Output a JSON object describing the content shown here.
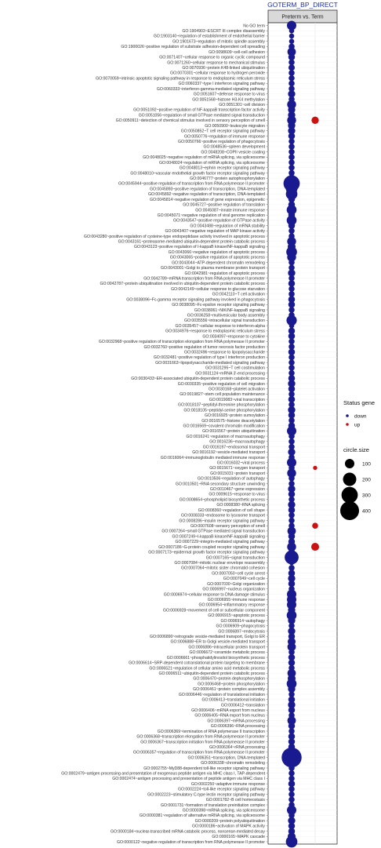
{
  "chart_data": {
    "type": "scatter",
    "title": "GOTERM_BP_DIRECT",
    "facet_label": "Preterm vs. Term",
    "x_positions": [
      "down",
      "up"
    ],
    "legend_status": {
      "title": "Status gene",
      "entries": [
        {
          "name": "down",
          "color": "#1a1a90"
        },
        {
          "name": "up",
          "color": "#cc1111"
        }
      ]
    },
    "legend_size": {
      "title": "circle.size",
      "values": [
        100,
        200,
        300,
        400
      ]
    },
    "rows": [
      {
        "term": "No GO term",
        "down": 100,
        "up": null
      },
      {
        "term": "GO:1904903~ESCRT III complex disassembly",
        "down": 30,
        "up": null
      },
      {
        "term": "GO:1903140~regulation of establishment of endothelial barrier",
        "down": 30,
        "up": null
      },
      {
        "term": "GO:1901673~regulation of mitotic spindle assembly",
        "down": 30,
        "up": null
      },
      {
        "term": "GO:1900026~positive regulation of substrate adhesion-dependent cell spreading",
        "down": 40,
        "up": null
      },
      {
        "term": "GO:0098609~cell-cell adhesion",
        "down": 80,
        "up": null
      },
      {
        "term": "GO:0071407~cellular response to organic cyclic compound",
        "down": 50,
        "up": null
      },
      {
        "term": "GO:0071260~cellular response to mechanical stimulus",
        "down": 40,
        "up": null
      },
      {
        "term": "GO:0070936~protein K48-linked ubiquitination",
        "down": 45,
        "up": null
      },
      {
        "term": "GO:0070301~cellular response to hydrogen peroxide",
        "down": 40,
        "up": null
      },
      {
        "term": "GO:0070059~intrinsic apoptotic signaling pathway in response to endoplasmic reticulum stress",
        "down": 40,
        "up": null
      },
      {
        "term": "GO:0060337~type I interferon signaling pathway",
        "down": 40,
        "up": null
      },
      {
        "term": "GO:0060333~interferon-gamma-mediated signaling pathway",
        "down": 40,
        "up": null
      },
      {
        "term": "GO:0051607~defense response to virus",
        "down": 60,
        "up": null
      },
      {
        "term": "GO:0051568~histone H3-K4 methylation",
        "down": 40,
        "up": null
      },
      {
        "term": "GO:0051301~cell division",
        "down": 90,
        "up": null
      },
      {
        "term": "GO:0051092~positive regulation of NF-kappaB transcription factor activity",
        "down": 60,
        "up": null
      },
      {
        "term": "GO:0051056~regulation of small GTPase mediated signal transduction",
        "down": 60,
        "up": null
      },
      {
        "term": "GO:0050911~detection of chemical stimulus involved in sensory perception of smell",
        "down": 90,
        "up": 60
      },
      {
        "term": "GO:0050900~leukocyte migration",
        "down": 60,
        "up": null
      },
      {
        "term": "GO:0050852~T cell receptor signaling pathway",
        "down": 60,
        "up": null
      },
      {
        "term": "GO:0050776~regulation of immune response",
        "down": 50,
        "up": null
      },
      {
        "term": "GO:0050766~positive regulation of phagocytosis",
        "down": 40,
        "up": null
      },
      {
        "term": "GO:0048536~spleen development",
        "down": 40,
        "up": null
      },
      {
        "term": "GO:0048208~COPII vesicle coating",
        "down": 40,
        "up": null
      },
      {
        "term": "GO:0048025~negative regulation of mRNA splicing, via spliceosome",
        "down": 40,
        "up": null
      },
      {
        "term": "GO:0048024~regulation of mRNA splicing, via spliceosome",
        "down": 40,
        "up": null
      },
      {
        "term": "GO:0048013~ephrin receptor signaling pathway",
        "down": 40,
        "up": null
      },
      {
        "term": "GO:0048010~vascular endothelial growth factor receptor signaling pathway",
        "down": 40,
        "up": null
      },
      {
        "term": "GO:0046777~protein autophosphorylation",
        "down": 60,
        "up": null
      },
      {
        "term": "GO:0045944~positive regulation of transcription from RNA polymerase II promoter",
        "down": 300,
        "up": null
      },
      {
        "term": "GO:0045893~positive regulation of transcription, DNA-templated",
        "down": 150,
        "up": null
      },
      {
        "term": "GO:0045892~negative regulation of transcription, DNA-templated",
        "down": 150,
        "up": null
      },
      {
        "term": "GO:0045814~negative regulation of gene expression, epigenetic",
        "down": 50,
        "up": null
      },
      {
        "term": "GO:0045727~positive regulation of translation",
        "down": 50,
        "up": null
      },
      {
        "term": "GO:0045087~innate immune response",
        "down": 110,
        "up": null
      },
      {
        "term": "GO:0045071~negative regulation of viral genome replication",
        "down": 50,
        "up": null
      },
      {
        "term": "GO:0043547~positive regulation of GTPase activity",
        "down": 110,
        "up": null
      },
      {
        "term": "GO:0043488~regulation of mRNA stability",
        "down": 50,
        "up": null
      },
      {
        "term": "GO:0043407~negative regulation of MAP kinase activity",
        "down": 40,
        "up": null
      },
      {
        "term": "GO:0043280~positive regulation of cysteine-type endopeptidase activity involved in apoptotic process",
        "down": 40,
        "up": null
      },
      {
        "term": "GO:0043161~proteasome-mediated ubiquitin-dependent protein catabolic process",
        "down": 90,
        "up": null
      },
      {
        "term": "GO:0043123~positive regulation of I-kappaB kinase/NF-kappaB signaling",
        "down": 70,
        "up": null
      },
      {
        "term": "GO:0043066~negative regulation of apoptotic process",
        "down": 130,
        "up": null
      },
      {
        "term": "GO:0043065~positive regulation of apoptotic process",
        "down": 90,
        "up": null
      },
      {
        "term": "GO:0043044~ATP-dependent chromatin remodeling",
        "down": 40,
        "up": null
      },
      {
        "term": "GO:0043001~Golgi to plasma membrane protein transport",
        "down": 40,
        "up": null
      },
      {
        "term": "GO:0042981~regulation of apoptotic process",
        "down": 60,
        "up": null
      },
      {
        "term": "GO:0042789~mRNA transcription from RNA polymerase II promoter",
        "down": 40,
        "up": null
      },
      {
        "term": "GO:0042787~protein ubiquitination involved in ubiquitin-dependent protein catabolic process",
        "down": 50,
        "up": null
      },
      {
        "term": "GO:0042149~cellular response to glucose starvation",
        "down": 40,
        "up": null
      },
      {
        "term": "GO:0042110~T cell activation",
        "down": 40,
        "up": null
      },
      {
        "term": "GO:0038096~Fc-gamma receptor signaling pathway involved in phagocytosis",
        "down": 50,
        "up": null
      },
      {
        "term": "GO:0038095~Fc-epsilon receptor signaling pathway",
        "down": 50,
        "up": null
      },
      {
        "term": "GO:0038061~NIK/NF-kappaB signaling",
        "down": 40,
        "up": null
      },
      {
        "term": "GO:0036258~multivesicular body assembly",
        "down": 40,
        "up": null
      },
      {
        "term": "GO:0035556~intracellular signal transduction",
        "down": 120,
        "up": null
      },
      {
        "term": "GO:0035457~cellular response to interferon-alpha",
        "down": 30,
        "up": null
      },
      {
        "term": "GO:0034976~response to endoplasmic reticulum stress",
        "down": 50,
        "up": null
      },
      {
        "term": "GO:0034097~response to cytokine",
        "down": 50,
        "up": null
      },
      {
        "term": "GO:0032968~positive regulation of transcription elongation from RNA polymerase II promoter",
        "down": 40,
        "up": null
      },
      {
        "term": "GO:0032760~positive regulation of tumor necrosis factor production",
        "down": 40,
        "up": null
      },
      {
        "term": "GO:0032496~response to lipopolysaccharide",
        "down": 50,
        "up": null
      },
      {
        "term": "GO:0032481~positive regulation of type I interferon production",
        "down": 40,
        "up": null
      },
      {
        "term": "GO:0031663~lipopolysaccharide-mediated signaling pathway",
        "down": 40,
        "up": null
      },
      {
        "term": "GO:0031295~T cell costimulation",
        "down": 40,
        "up": null
      },
      {
        "term": "GO:0031124~mRNA 3'-end processing",
        "down": 40,
        "up": null
      },
      {
        "term": "GO:0030433~ER-associated ubiquitin-dependent protein catabolic process",
        "down": 50,
        "up": null
      },
      {
        "term": "GO:0030335~positive regulation of cell migration",
        "down": 60,
        "up": null
      },
      {
        "term": "GO:0030168~platelet activation",
        "down": 50,
        "up": null
      },
      {
        "term": "GO:0019827~stem cell population maintenance",
        "down": 40,
        "up": null
      },
      {
        "term": "GO:0019083~viral transcription",
        "down": 50,
        "up": null
      },
      {
        "term": "GO:0018107~peptidyl-threonine phosphorylation",
        "down": 40,
        "up": null
      },
      {
        "term": "GO:0018105~peptidyl-serine phosphorylation",
        "down": 60,
        "up": null
      },
      {
        "term": "GO:0016925~protein sumoylation",
        "down": 50,
        "up": null
      },
      {
        "term": "GO:0016575~histone deacetylation",
        "down": 40,
        "up": null
      },
      {
        "term": "GO:0016569~covalent chromatin modification",
        "down": 50,
        "up": null
      },
      {
        "term": "GO:0016567~protein ubiquitination",
        "down": 100,
        "up": null
      },
      {
        "term": "GO:0016241~regulation of macroautophagy",
        "down": 40,
        "up": null
      },
      {
        "term": "GO:0016236~macroautophagy",
        "down": 40,
        "up": null
      },
      {
        "term": "GO:0016197~endosomal transport",
        "down": 40,
        "up": null
      },
      {
        "term": "GO:0016192~vesicle-mediated transport",
        "down": 60,
        "up": null
      },
      {
        "term": "GO:0016064~immunoglobulin mediated immune response",
        "down": 40,
        "up": null
      },
      {
        "term": "GO:0016032~viral process",
        "down": 100,
        "up": null
      },
      {
        "term": "GO:0015671~oxygen transport",
        "down": 40,
        "up": 20
      },
      {
        "term": "GO:0015031~protein transport",
        "down": 90,
        "up": null
      },
      {
        "term": "GO:0010506~regulation of autophagy",
        "down": 40,
        "up": null
      },
      {
        "term": "GO:0010501~RNA secondary structure unwinding",
        "down": 40,
        "up": null
      },
      {
        "term": "GO:0010467~gene expression",
        "down": 60,
        "up": null
      },
      {
        "term": "GO:0009615~response to virus",
        "down": 50,
        "up": null
      },
      {
        "term": "GO:0008654~phospholipid biosynthetic process",
        "down": 40,
        "up": null
      },
      {
        "term": "GO:0008380~RNA splicing",
        "down": 60,
        "up": null
      },
      {
        "term": "GO:0008360~regulation of cell shape",
        "down": 50,
        "up": null
      },
      {
        "term": "GO:0008333~endosome to lysosome transport",
        "down": 40,
        "up": null
      },
      {
        "term": "GO:0008286~insulin receptor signaling pathway",
        "down": 40,
        "up": null
      },
      {
        "term": "GO:0007608~sensory perception of smell",
        "down": 40,
        "up": 40
      },
      {
        "term": "GO:0007264~small GTPase mediated signal transduction",
        "down": 80,
        "up": null
      },
      {
        "term": "GO:0007249~I-kappaB kinase/NF-kappaB signaling",
        "down": 50,
        "up": null
      },
      {
        "term": "GO:0007229~integrin-mediated signaling pathway",
        "down": 50,
        "up": null
      },
      {
        "term": "GO:0007186~G-protein coupled receptor signaling pathway",
        "down": 90,
        "up": 70
      },
      {
        "term": "GO:0007173~epidermal growth factor receptor signaling pathway",
        "down": 50,
        "up": null
      },
      {
        "term": "GO:0007165~signal transduction",
        "down": 220,
        "up": null
      },
      {
        "term": "GO:0007084~mitotic nuclear envelope reassembly",
        "down": 30,
        "up": null
      },
      {
        "term": "GO:0007064~mitotic sister chromatid cohesion",
        "down": 40,
        "up": null
      },
      {
        "term": "GO:0007050~cell cycle arrest",
        "down": 50,
        "up": null
      },
      {
        "term": "GO:0007049~cell cycle",
        "down": 60,
        "up": null
      },
      {
        "term": "GO:0007030~Golgi organization",
        "down": 50,
        "up": null
      },
      {
        "term": "GO:0006997~nucleus organization",
        "down": 40,
        "up": null
      },
      {
        "term": "GO:0006974~cellular response to DNA damage stimulus",
        "down": 100,
        "up": null
      },
      {
        "term": "GO:0006955~immune response",
        "down": 100,
        "up": null
      },
      {
        "term": "GO:0006954~inflammatory response",
        "down": 100,
        "up": null
      },
      {
        "term": "GO:0006928~movement of cell or subcellular component",
        "down": 60,
        "up": null
      },
      {
        "term": "GO:0006915~apoptotic process",
        "down": 110,
        "up": null
      },
      {
        "term": "GO:0006914~autophagy",
        "down": 60,
        "up": null
      },
      {
        "term": "GO:0006909~phagocytosis",
        "down": 40,
        "up": null
      },
      {
        "term": "GO:0006897~endocytosis",
        "down": 60,
        "up": null
      },
      {
        "term": "GO:0006890~retrograde vesicle-mediated transport, Golgi to ER",
        "down": 50,
        "up": null
      },
      {
        "term": "GO:0006888~ER to Golgi vesicle-mediated transport",
        "down": 70,
        "up": null
      },
      {
        "term": "GO:0006886~intracellular protein transport",
        "down": 80,
        "up": null
      },
      {
        "term": "GO:0006672~ceramide metabolic process",
        "down": 40,
        "up": null
      },
      {
        "term": "GO:0006661~phosphatidylinositol biosynthetic process",
        "down": 50,
        "up": null
      },
      {
        "term": "GO:0006614~SRP-dependent cotranslational protein targeting to membrane",
        "down": 50,
        "up": null
      },
      {
        "term": "GO:0006521~regulation of cellular amino acid metabolic process",
        "down": 40,
        "up": null
      },
      {
        "term": "GO:0006511~ubiquitin-dependent protein catabolic process",
        "down": 80,
        "up": null
      },
      {
        "term": "GO:0006470~protein dephosphorylation",
        "down": 70,
        "up": null
      },
      {
        "term": "GO:0006468~protein phosphorylation",
        "down": 110,
        "up": null
      },
      {
        "term": "GO:0006461~protein complex assembly",
        "down": 60,
        "up": null
      },
      {
        "term": "GO:0006446~regulation of translational initiation",
        "down": 40,
        "up": null
      },
      {
        "term": "GO:0006413~translational initiation",
        "down": 50,
        "up": null
      },
      {
        "term": "GO:0006412~translation",
        "down": 60,
        "up": null
      },
      {
        "term": "GO:0006406~mRNA export from nucleus",
        "down": 50,
        "up": null
      },
      {
        "term": "GO:0006405~RNA export from nucleus",
        "down": 40,
        "up": null
      },
      {
        "term": "GO:0006397~mRNA processing",
        "down": 80,
        "up": null
      },
      {
        "term": "GO:0006396~RNA processing",
        "down": 50,
        "up": null
      },
      {
        "term": "GO:0006369~termination of RNA polymerase II transcription",
        "down": 40,
        "up": null
      },
      {
        "term": "GO:0006368~transcription elongation from RNA polymerase II promoter",
        "down": 50,
        "up": null
      },
      {
        "term": "GO:0006367~transcription initiation from RNA polymerase II promoter",
        "down": 50,
        "up": null
      },
      {
        "term": "GO:0006364~rRNA processing",
        "down": 50,
        "up": null
      },
      {
        "term": "GO:0006357~regulation of transcription from RNA polymerase II promoter",
        "down": 110,
        "up": null
      },
      {
        "term": "GO:0006351~transcription, DNA-templated",
        "down": 450,
        "up": null
      },
      {
        "term": "GO:0006338~chromatin remodeling",
        "down": 50,
        "up": null
      },
      {
        "term": "GO:0002755~MyD88-dependent toll-like receptor signaling pathway",
        "down": 40,
        "up": null
      },
      {
        "term": "GO:0002479~antigen processing and presentation of exogenous peptide antigen via MHC class I, TAP-dependent",
        "down": 40,
        "up": null
      },
      {
        "term": "GO:0002474~antigen processing and presentation of peptide antigen via MHC class I",
        "down": 40,
        "up": null
      },
      {
        "term": "GO:0002250~adaptive immune response",
        "down": 50,
        "up": null
      },
      {
        "term": "GO:0002224~toll-like receptor signaling pathway",
        "down": 40,
        "up": null
      },
      {
        "term": "GO:0002223~stimulatory C-type lectin receptor signaling pathway",
        "down": 40,
        "up": null
      },
      {
        "term": "GO:0001782~B cell homeostasis",
        "down": 40,
        "up": null
      },
      {
        "term": "GO:0001731~formation of translation preinitiation complex",
        "down": 40,
        "up": null
      },
      {
        "term": "GO:0000398~mRNA splicing, via spliceosome",
        "down": 100,
        "up": null
      },
      {
        "term": "GO:0000381~regulation of alternative mRNA splicing, via spliceosome",
        "down": 40,
        "up": null
      },
      {
        "term": "GO:0000209~protein polyubiquitination",
        "down": 60,
        "up": null
      },
      {
        "term": "GO:0000186~activation of MAPK activity",
        "down": 50,
        "up": null
      },
      {
        "term": "GO:0000184~nuclear-transcribed mRNA catabolic process, nonsense-mediated decay",
        "down": 50,
        "up": null
      },
      {
        "term": "GO:0000165~MAPK cascade",
        "down": 70,
        "up": null
      },
      {
        "term": "GO:0000122~negative regulation of transcription from RNA polymerase II promoter",
        "down": 150,
        "up": null
      }
    ]
  }
}
